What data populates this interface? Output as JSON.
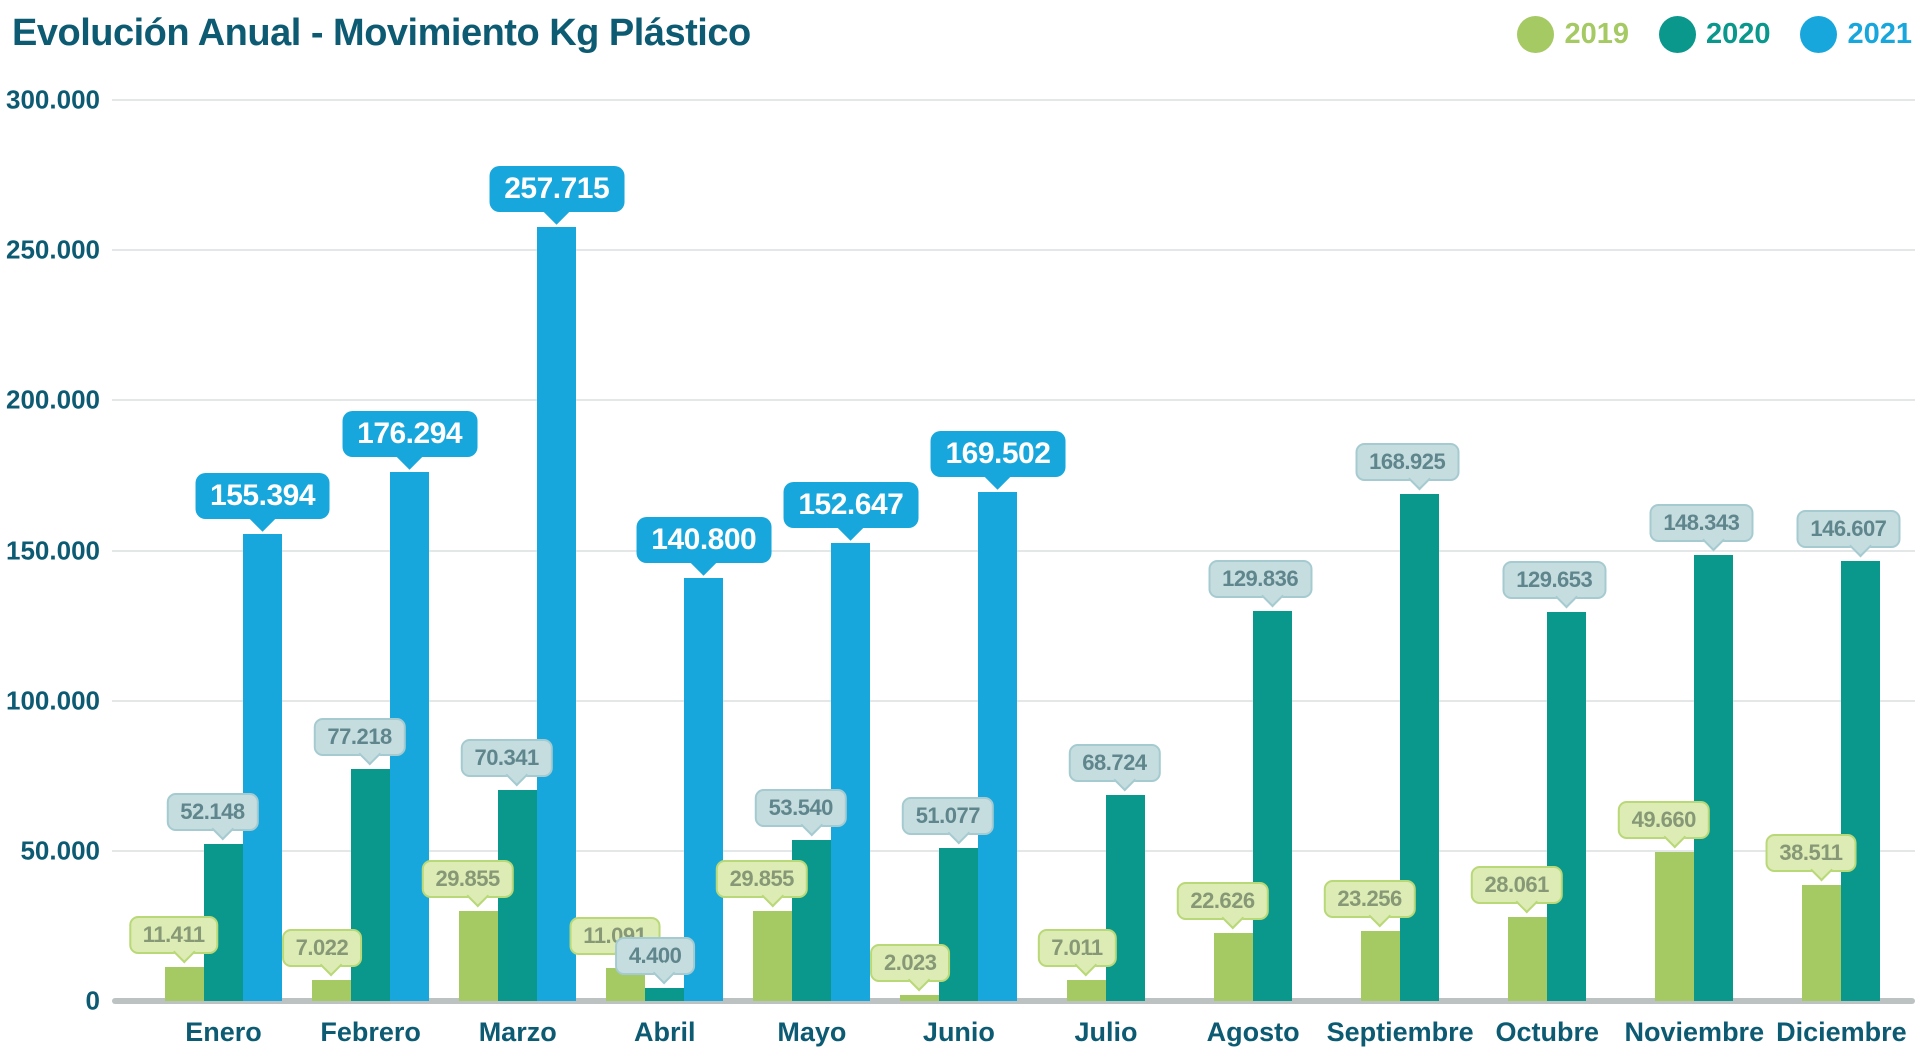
{
  "title": "Evolución Anual - Movimiento Kg Plástico",
  "colors": {
    "title_text": "#0d5b73",
    "axis_text": "#0d5b73",
    "gridline": "#e4e7e7",
    "baseline": "#bcc1c1",
    "series_2019": "#a5c963",
    "series_2020": "#0a978c",
    "series_2021": "#18a7dc"
  },
  "chart_data": {
    "type": "bar",
    "title": "Evolución Anual - Movimiento Kg Plástico",
    "xlabel": "",
    "ylabel": "",
    "ylim": [
      0,
      300000
    ],
    "yticks": [
      0,
      50000,
      100000,
      150000,
      200000,
      250000,
      300000
    ],
    "ytick_labels": [
      "0",
      "50.000",
      "100.000",
      "150.000",
      "200.000",
      "250.000",
      "300.000"
    ],
    "grid": true,
    "legend_position": "top-right",
    "categories": [
      "Enero",
      "Febrero",
      "Marzo",
      "Abril",
      "Mayo",
      "Junio",
      "Julio",
      "Agosto",
      "Septiembre",
      "Octubre",
      "Noviembre",
      "Diciembre"
    ],
    "series": [
      {
        "name": "2019",
        "color": "#a5c963",
        "values": [
          11411,
          7022,
          29855,
          11091,
          29855,
          2023,
          7011,
          22626,
          23256,
          28061,
          49660,
          38511
        ],
        "labels": [
          "11.411",
          "7.022",
          "29.855",
          "11.091",
          "29.855",
          "2.023",
          "7.011",
          "22.626",
          "23.256",
          "28.061",
          "49.660",
          "38.511"
        ]
      },
      {
        "name": "2020",
        "color": "#0a978c",
        "values": [
          52148,
          77218,
          70341,
          4400,
          53540,
          51077,
          68724,
          129836,
          168925,
          129653,
          148343,
          146607
        ],
        "labels": [
          "52.148",
          "77.218",
          "70.341",
          "4.400",
          "53.540",
          "51.077",
          "68.724",
          "129.836",
          "168.925",
          "129.653",
          "148.343",
          "146.607"
        ]
      },
      {
        "name": "2021",
        "color": "#18a7dc",
        "values": [
          155394,
          176294,
          257715,
          140800,
          152647,
          169502,
          null,
          null,
          null,
          null,
          null,
          null
        ],
        "labels": [
          "155.394",
          "176.294",
          "257.715",
          "140.800",
          "152.647",
          "169.502",
          null,
          null,
          null,
          null,
          null,
          null
        ]
      }
    ]
  }
}
